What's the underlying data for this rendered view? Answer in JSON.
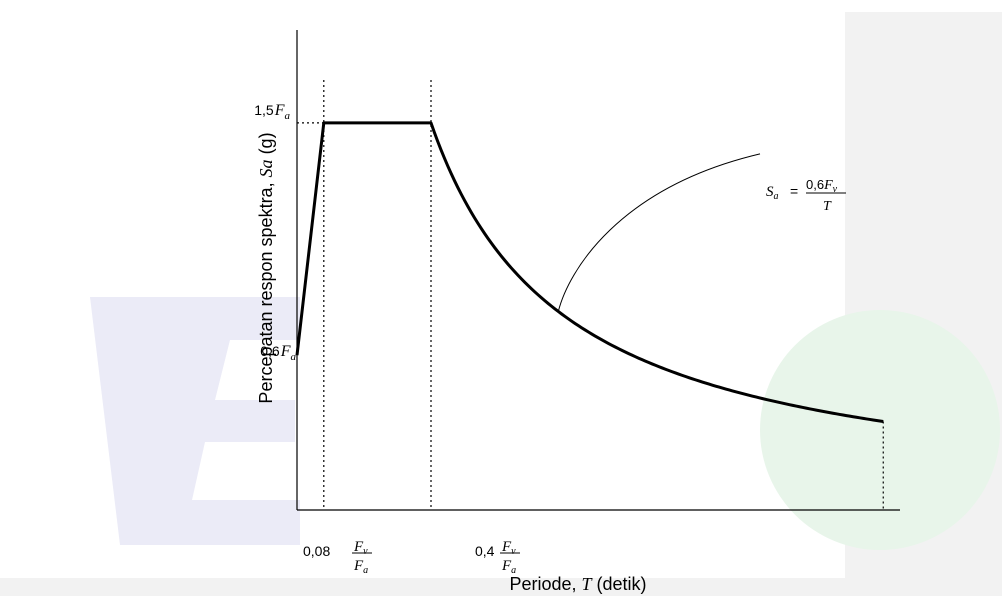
{
  "watermark": {
    "letter_color": "#ebebf7",
    "circle_color": "#e8f5ea",
    "band_color": "#f2f2f2"
  },
  "chart_data": {
    "type": "line",
    "title": "",
    "xlabel": {
      "text": "Periode, ",
      "symbol": "T",
      "unit": " (detik)"
    },
    "ylabel": {
      "text": "Percepatan respon spektra, ",
      "symbol": "Sa",
      "unit": " (g)"
    },
    "x_ticks": [
      {
        "id": "t0",
        "coef": "0,08",
        "num": "F",
        "num_sub": "v",
        "den": "F",
        "den_sub": "a"
      },
      {
        "id": "ts",
        "coef": "0,4",
        "num": "F",
        "num_sub": "v",
        "den": "F",
        "den_sub": "a"
      }
    ],
    "y_ticks": [
      {
        "id": "sds",
        "coef": "1,5",
        "sym": "F",
        "sub": "a",
        "value": 1.5
      },
      {
        "id": "s0",
        "coef": "0,6",
        "sym": "F",
        "sub": "a",
        "value": 0.6
      }
    ],
    "annotation": {
      "lhs": "S",
      "lhs_sub": "a",
      "eq": "=",
      "num_coef": "0,6",
      "num_sym": "F",
      "num_sub": "v",
      "den": "T"
    },
    "series": [
      {
        "values_note_free": true,
        "points": [
          [
            0,
            0.6
          ],
          [
            0.08,
            1.5
          ],
          [
            0.4,
            1.5
          ],
          [
            0.5,
            1.2
          ],
          [
            0.6,
            1.0
          ],
          [
            0.7,
            0.857
          ],
          [
            0.8,
            0.75
          ],
          [
            0.9,
            0.667
          ],
          [
            1.0,
            0.6
          ],
          [
            1.1,
            0.545
          ],
          [
            1.2,
            0.5
          ],
          [
            1.3,
            0.462
          ],
          [
            1.4,
            0.429
          ],
          [
            1.5,
            0.4
          ],
          [
            1.6,
            0.375
          ],
          [
            1.7,
            0.353
          ],
          [
            1.75,
            0.343
          ]
        ]
      }
    ],
    "xlim": [
      0,
      1.8
    ],
    "ylim": [
      0,
      1.86
    ],
    "grid": false
  }
}
